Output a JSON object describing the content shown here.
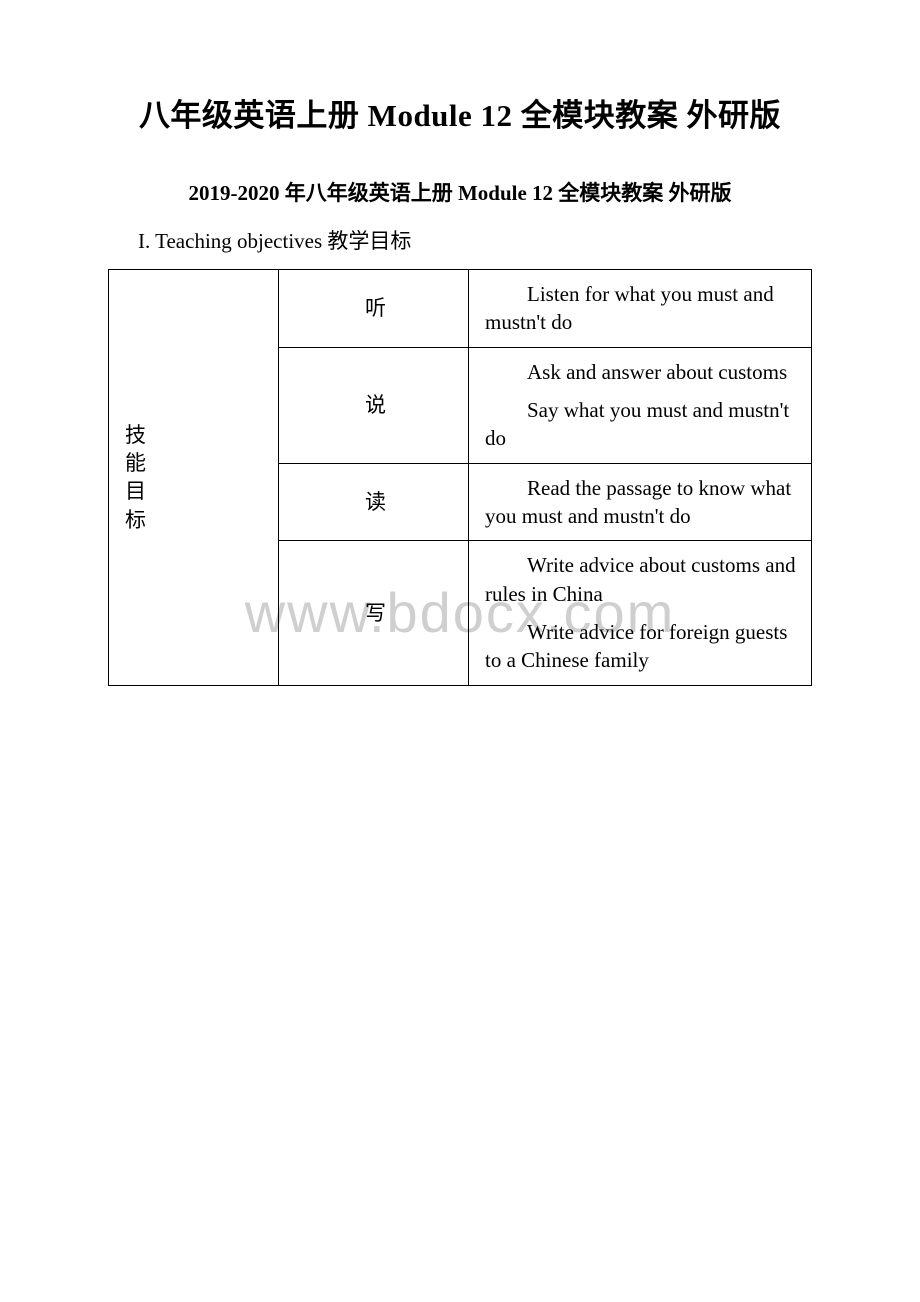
{
  "watermark": "www.bdocx.com",
  "title": "八年级英语上册 Module 12 全模块教案 外研版",
  "subtitle": "2019-2020 年八年级英语上册 Module 12 全模块教案 外研版",
  "section_label": "I. Teaching objectives 教学目标",
  "col0_label": "技能目标",
  "rows": [
    {
      "skill": "听",
      "p1": "Listen for what you must and mustn't do"
    },
    {
      "skill": "说",
      "p1": "Ask and answer about customs",
      "p2": "Say what you must and mustn't do"
    },
    {
      "skill": "读",
      "p1": "Read the passage to know what you must and mustn't do"
    },
    {
      "skill": "写",
      "p1": "Write advice about customs and rules in China",
      "p2": "Write advice for foreign guests to a Chinese family"
    }
  ],
  "colors": {
    "text": "#000000",
    "border": "#000000",
    "background": "#ffffff",
    "watermark": "#cfcfcf"
  }
}
